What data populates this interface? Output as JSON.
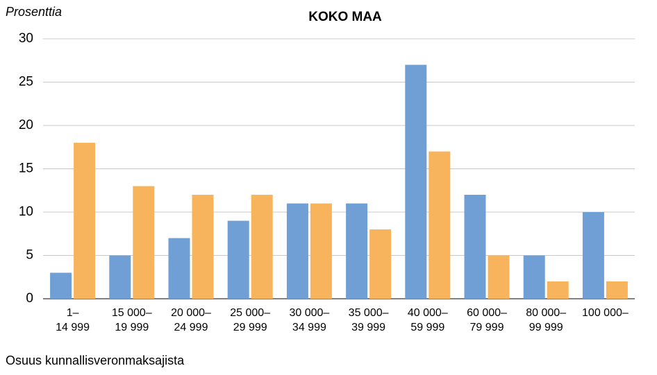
{
  "chart_data": {
    "type": "bar",
    "title": "KOKO MAA",
    "y_label": "Prosenttia",
    "x_label": "Osuus kunnallisveronmaksajista",
    "categories": [
      [
        "1–",
        "14 999"
      ],
      [
        "15 000–",
        "19 999"
      ],
      [
        "20 000–",
        "24 999"
      ],
      [
        "25 000–",
        "29 999"
      ],
      [
        "30 000–",
        "34 999"
      ],
      [
        "35 000–",
        "39 999"
      ],
      [
        "40 000–",
        "59 999"
      ],
      [
        "60 000–",
        "79 999"
      ],
      [
        "80 000–",
        "99 999"
      ],
      [
        "100 000–"
      ]
    ],
    "series": [
      {
        "color": "#6f9fd4",
        "values": [
          3,
          5,
          7,
          9,
          11,
          11,
          27,
          12,
          5,
          10
        ]
      },
      {
        "color": "#f8b45c",
        "values": [
          18,
          13,
          12,
          12,
          11,
          8,
          17,
          5,
          2,
          2
        ]
      }
    ],
    "ylim": [
      0,
      30
    ],
    "yticks": [
      0,
      5,
      10,
      15,
      20,
      25,
      30
    ],
    "grid": true
  }
}
